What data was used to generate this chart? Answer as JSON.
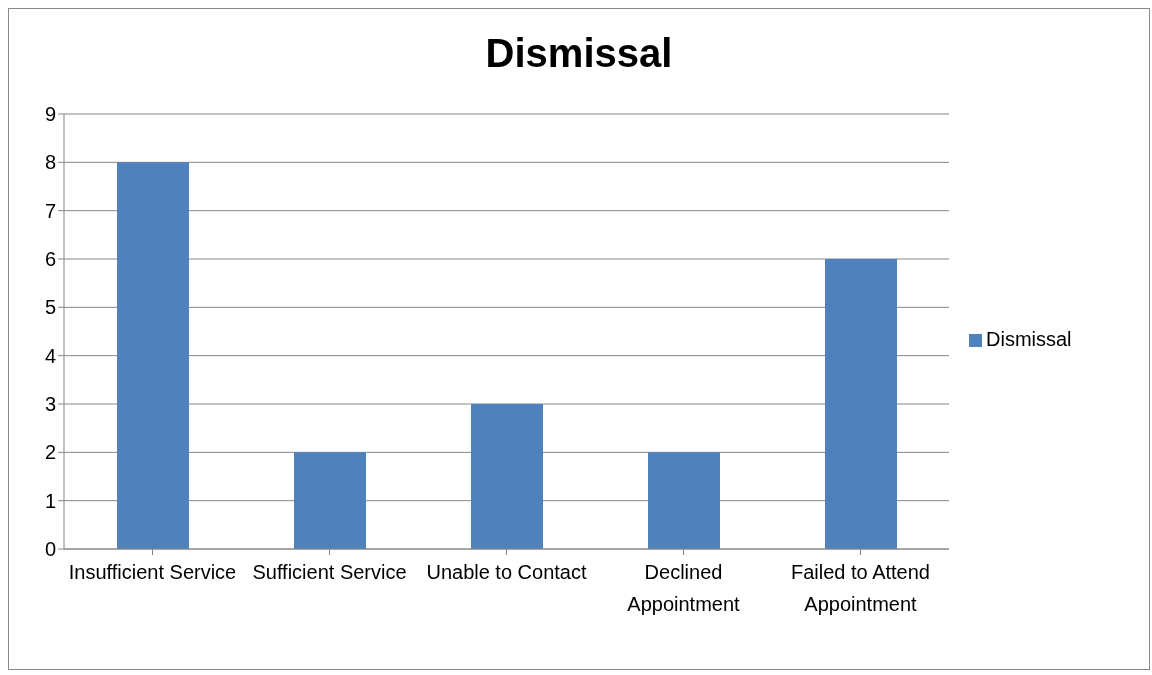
{
  "chart_data": {
    "type": "bar",
    "title": "Dismissal",
    "categories": [
      "Insufficient Service",
      "Sufficient Service",
      "Unable to Contact",
      "Declined Appointment",
      "Failed to Attend Appointment"
    ],
    "series": [
      {
        "name": "Dismissal",
        "color": "#4f81bd",
        "values": [
          8,
          2,
          3,
          2,
          6
        ]
      }
    ],
    "ylim": [
      0,
      9
    ],
    "yticks": [
      0,
      1,
      2,
      3,
      4,
      5,
      6,
      7,
      8,
      9
    ],
    "grid": "y",
    "legend": "right"
  }
}
